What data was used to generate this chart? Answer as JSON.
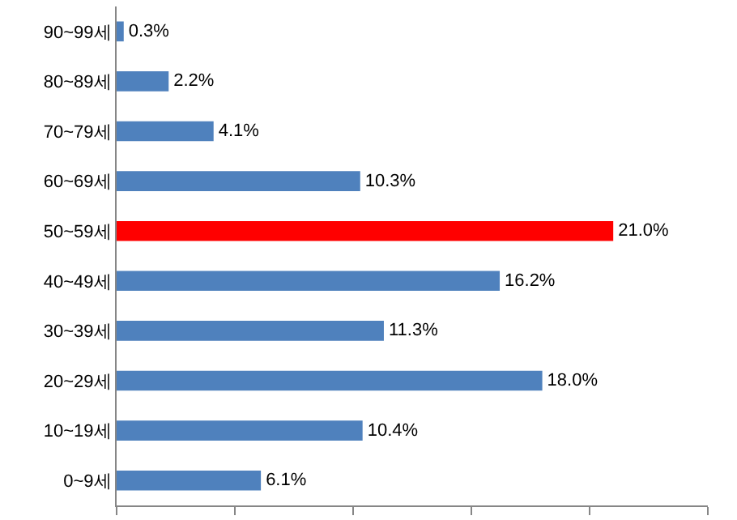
{
  "chart_data": {
    "type": "bar",
    "orientation": "horizontal",
    "categories": [
      "90~99세",
      "80~89세",
      "70~79세",
      "60~69세",
      "50~59세",
      "40~49세",
      "30~39세",
      "20~29세",
      "10~19세",
      "0~9세"
    ],
    "values": [
      0.3,
      2.2,
      4.1,
      10.3,
      21.0,
      16.2,
      11.3,
      18.0,
      10.4,
      6.1
    ],
    "value_labels": [
      "0.3%",
      "2.2%",
      "4.1%",
      "10.3%",
      "21.0%",
      "16.2%",
      "11.3%",
      "18.0%",
      "10.4%",
      "6.1%"
    ],
    "colors": [
      "#4f81bd",
      "#4f81bd",
      "#4f81bd",
      "#4f81bd",
      "#ff0000",
      "#4f81bd",
      "#4f81bd",
      "#4f81bd",
      "#4f81bd",
      "#4f81bd"
    ],
    "xlim": [
      0,
      25
    ],
    "xticks": [
      {
        "value": 0,
        "label": null
      },
      {
        "value": 5,
        "label": null
      },
      {
        "value": 10,
        "label": null
      },
      {
        "value": 15,
        "label": null
      },
      {
        "value": 20,
        "label": null
      },
      {
        "value": 25,
        "label": null
      }
    ],
    "tick_labels": "y"
  }
}
